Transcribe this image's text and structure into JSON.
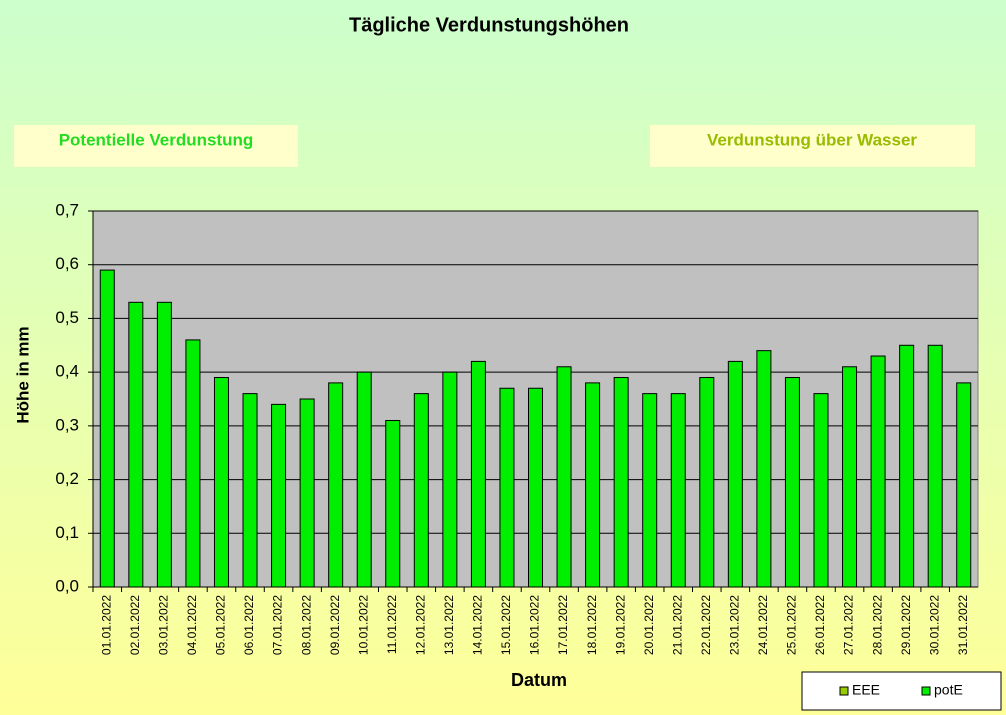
{
  "chart_data": {
    "type": "bar",
    "title": "Tägliche Verdunstungshöhen",
    "annotations": [
      "Potentielle Verdunstung",
      "Verdunstung über Wasser"
    ],
    "x_label": "Datum",
    "y_label": "Höhe in mm",
    "categories": [
      "01.01.2022",
      "02.01.2022",
      "03.01.2022",
      "04.01.2022",
      "05.01.2022",
      "06.01.2022",
      "07.01.2022",
      "08.01.2022",
      "09.01.2022",
      "10.01.2022",
      "11.01.2022",
      "12.01.2022",
      "13.01.2022",
      "14.01.2022",
      "15.01.2022",
      "16.01.2022",
      "17.01.2022",
      "18.01.2022",
      "19.01.2022",
      "20.01.2022",
      "21.01.2022",
      "22.01.2022",
      "23.01.2022",
      "24.01.2022",
      "25.01.2022",
      "26.01.2022",
      "27.01.2022",
      "28.01.2022",
      "29.01.2022",
      "30.01.2022",
      "31.01.2022"
    ],
    "series": [
      {
        "name": "EEE",
        "color": "#99cc00",
        "values": [
          null,
          null,
          null,
          null,
          null,
          null,
          null,
          null,
          null,
          null,
          null,
          null,
          null,
          null,
          null,
          null,
          null,
          null,
          null,
          null,
          null,
          null,
          null,
          null,
          null,
          null,
          null,
          null,
          null,
          null,
          null
        ]
      },
      {
        "name": "potE",
        "color": "#00ee00",
        "values": [
          0.59,
          0.53,
          0.53,
          0.46,
          0.39,
          0.36,
          0.34,
          0.35,
          0.38,
          0.4,
          0.31,
          0.36,
          0.4,
          0.42,
          0.37,
          0.37,
          0.41,
          0.38,
          0.39,
          0.36,
          0.36,
          0.39,
          0.42,
          0.44,
          0.39,
          0.36,
          0.41,
          0.43,
          0.45,
          0.45,
          0.38
        ]
      }
    ],
    "ylim": [
      0,
      0.7
    ],
    "yticks": [
      {
        "value": 0,
        "label": "0,0"
      },
      {
        "value": 0.1,
        "label": "0,1"
      },
      {
        "value": 0.2,
        "label": "0,2"
      },
      {
        "value": 0.3,
        "label": "0,3"
      },
      {
        "value": 0.4,
        "label": "0,4"
      },
      {
        "value": 0.5,
        "label": "0,5"
      },
      {
        "value": 0.6,
        "label": "0,6"
      },
      {
        "value": 0.7,
        "label": "0,7"
      }
    ],
    "grid": true,
    "legend": "bottom-right"
  }
}
